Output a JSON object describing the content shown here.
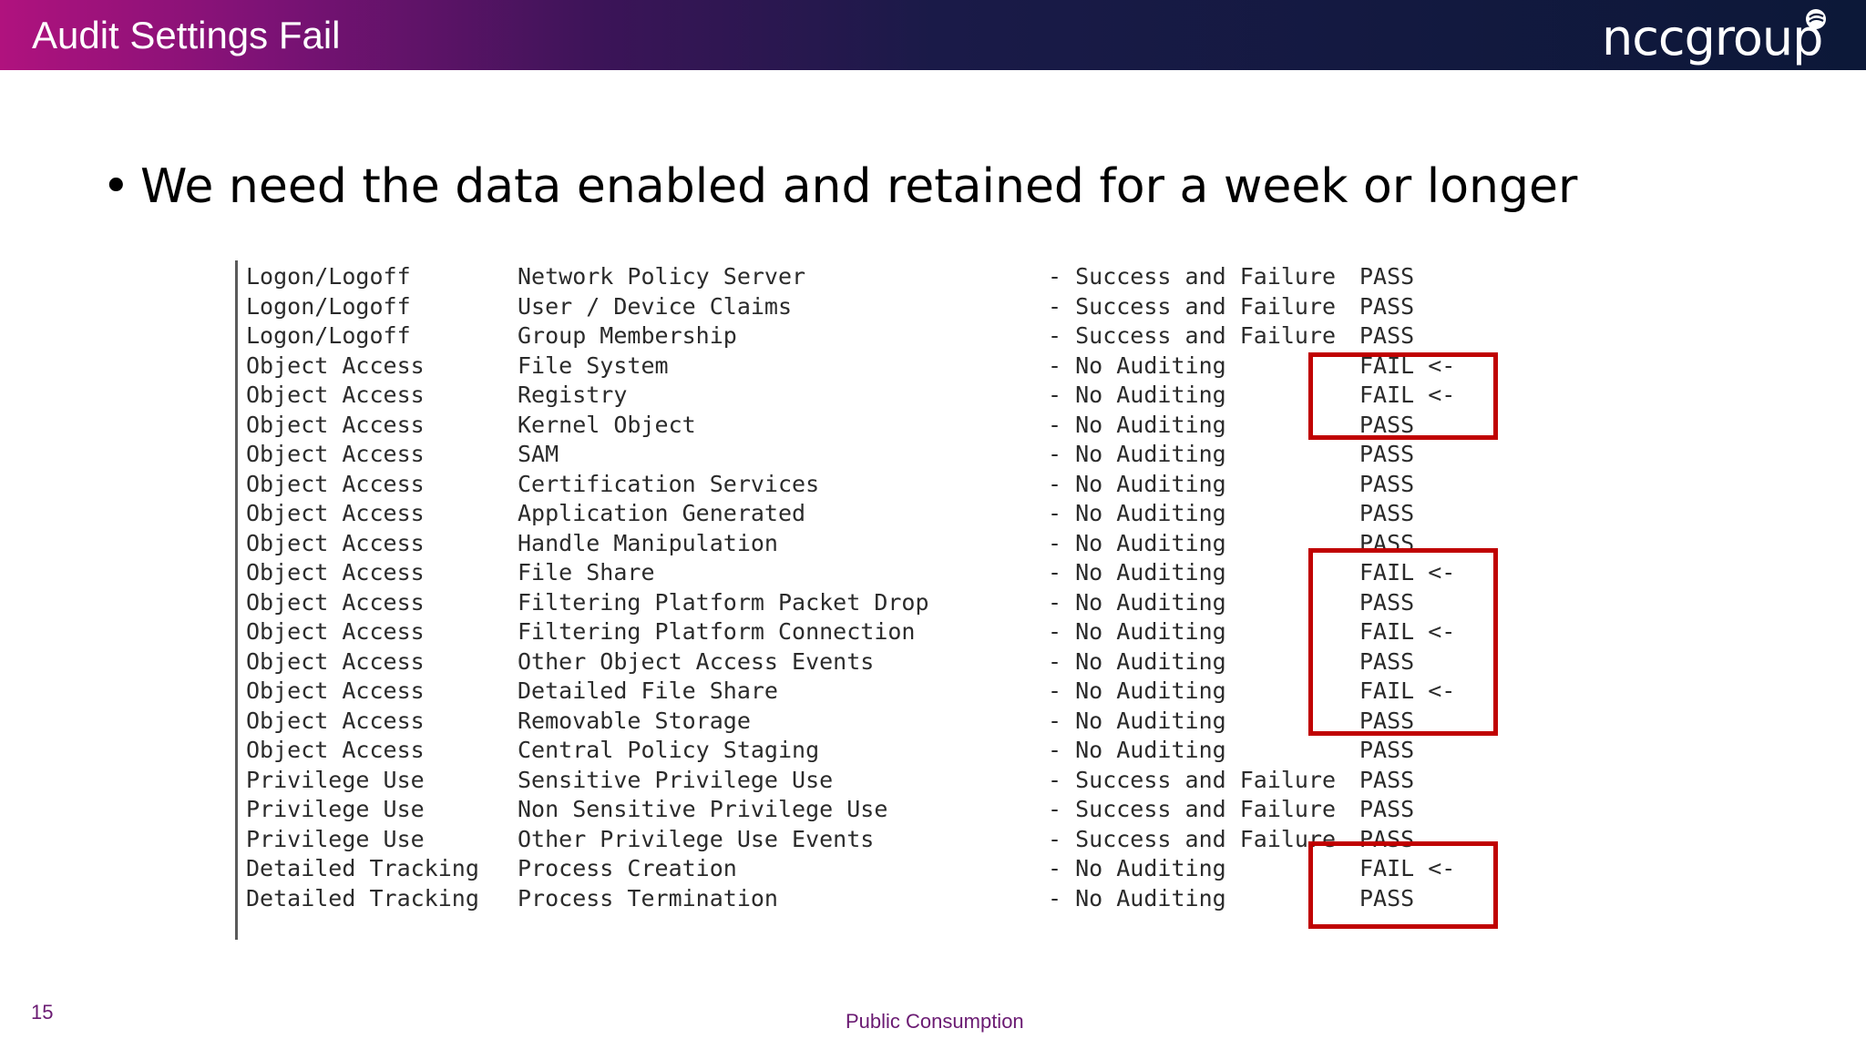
{
  "slide": {
    "title": "Audit Settings Fail",
    "logo_text": "nccgroup",
    "bullet": "We need the data enabled and retained for a week or longer",
    "page_number": "15",
    "classification": "Public Consumption"
  },
  "colors": {
    "header_magenta": "#b0127e",
    "header_navy": "#0c1838",
    "highlight_red": "#c00000",
    "footer_purple": "#6a1a72"
  },
  "audit_table": {
    "rows": [
      {
        "category": "Logon/Logoff",
        "subcategory": "Network Policy Server",
        "setting": "- Success and Failure",
        "result": "PASS"
      },
      {
        "category": "Logon/Logoff",
        "subcategory": "User / Device Claims",
        "setting": "- Success and Failure",
        "result": "PASS"
      },
      {
        "category": "Logon/Logoff",
        "subcategory": "Group Membership",
        "setting": "- Success and Failure",
        "result": "PASS"
      },
      {
        "category": "Object Access",
        "subcategory": "File System",
        "setting": "- No Auditing",
        "result": "FAIL <-"
      },
      {
        "category": "Object Access",
        "subcategory": "Registry",
        "setting": "- No Auditing",
        "result": "FAIL <-"
      },
      {
        "category": "Object Access",
        "subcategory": "Kernel Object",
        "setting": "- No Auditing",
        "result": "PASS"
      },
      {
        "category": "Object Access",
        "subcategory": "SAM",
        "setting": "- No Auditing",
        "result": "PASS"
      },
      {
        "category": "Object Access",
        "subcategory": "Certification Services",
        "setting": "- No Auditing",
        "result": "PASS"
      },
      {
        "category": "Object Access",
        "subcategory": "Application Generated",
        "setting": "- No Auditing",
        "result": "PASS"
      },
      {
        "category": "Object Access",
        "subcategory": "Handle Manipulation",
        "setting": "- No Auditing",
        "result": "PASS"
      },
      {
        "category": "Object Access",
        "subcategory": "File Share",
        "setting": "- No Auditing",
        "result": "FAIL <-"
      },
      {
        "category": "Object Access",
        "subcategory": "Filtering Platform Packet Drop",
        "setting": "- No Auditing",
        "result": "PASS"
      },
      {
        "category": "Object Access",
        "subcategory": "Filtering Platform Connection",
        "setting": "- No Auditing",
        "result": "FAIL <-"
      },
      {
        "category": "Object Access",
        "subcategory": "Other Object Access Events",
        "setting": "- No Auditing",
        "result": "PASS"
      },
      {
        "category": "Object Access",
        "subcategory": "Detailed File Share",
        "setting": "- No Auditing",
        "result": "FAIL <-"
      },
      {
        "category": "Object Access",
        "subcategory": "Removable Storage",
        "setting": "- No Auditing",
        "result": "PASS"
      },
      {
        "category": "Object Access",
        "subcategory": "Central Policy Staging",
        "setting": "- No Auditing",
        "result": "PASS"
      },
      {
        "category": "Privilege Use",
        "subcategory": "Sensitive Privilege Use",
        "setting": "- Success and Failure",
        "result": "PASS"
      },
      {
        "category": "Privilege Use",
        "subcategory": "Non Sensitive Privilege Use",
        "setting": "- Success and Failure",
        "result": "PASS"
      },
      {
        "category": "Privilege Use",
        "subcategory": "Other Privilege Use Events",
        "setting": "- Success and Failure",
        "result": "PASS"
      },
      {
        "category": "Detailed Tracking",
        "subcategory": "Process Creation",
        "setting": "- No Auditing",
        "result": "FAIL <-"
      },
      {
        "category": "Detailed Tracking",
        "subcategory": "Process Termination",
        "setting": "- No Auditing",
        "result": "PASS"
      }
    ]
  }
}
